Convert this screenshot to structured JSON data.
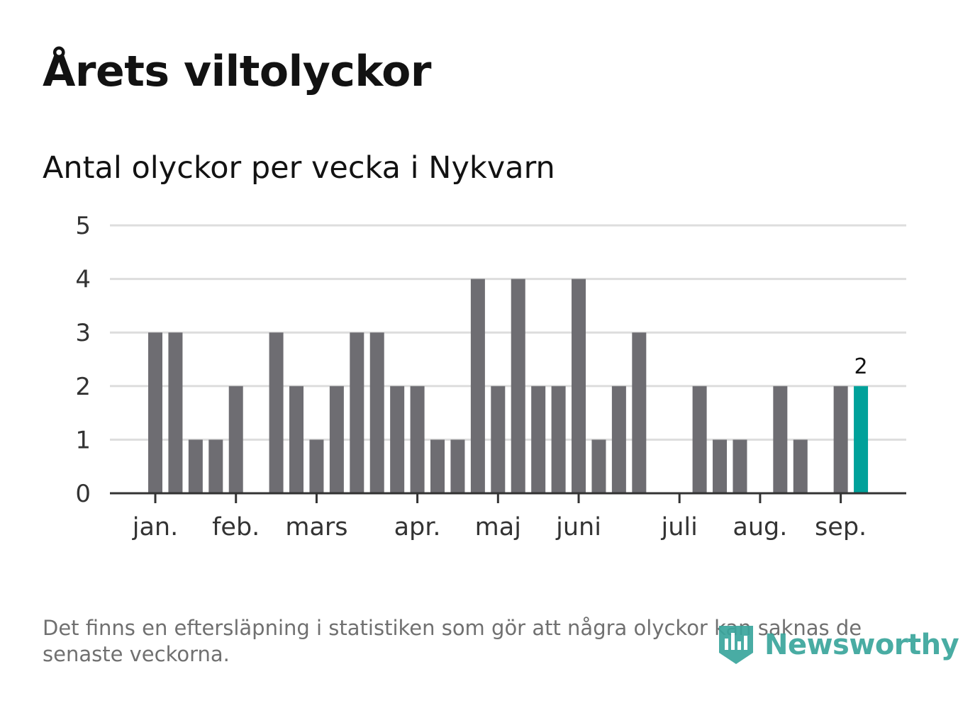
{
  "title": "Årets viltolyckor",
  "subtitle": "Antal olyckor per vecka i Nykvarn",
  "footnote": "Det finns en eftersläpning i statistiken som gör att några olyckor kan saknas de senaste veckorna.",
  "brand": {
    "name": "Newsworthy",
    "color": "#3aa59c"
  },
  "chart_data": {
    "type": "bar",
    "ylim": [
      0,
      5
    ],
    "y_ticks": [
      0,
      1,
      2,
      3,
      4,
      5
    ],
    "grid": true,
    "colors": {
      "bar": "#6e6d72",
      "highlight": "#00a19a",
      "grid": "#dddddd",
      "axis": "#333333"
    },
    "month_labels": [
      {
        "label": "jan.",
        "week": 1
      },
      {
        "label": "feb.",
        "week": 5
      },
      {
        "label": "mars",
        "week": 9
      },
      {
        "label": "apr.",
        "week": 14
      },
      {
        "label": "maj",
        "week": 18
      },
      {
        "label": "juni",
        "week": 22
      },
      {
        "label": "juli",
        "week": 27
      },
      {
        "label": "aug.",
        "week": 31
      },
      {
        "label": "sep.",
        "week": 35
      }
    ],
    "weeks": [
      1,
      2,
      3,
      4,
      5,
      6,
      7,
      8,
      9,
      10,
      11,
      12,
      13,
      14,
      15,
      16,
      17,
      18,
      19,
      20,
      21,
      22,
      23,
      24,
      25,
      26,
      27,
      28,
      29,
      30,
      31,
      32,
      33,
      34,
      35,
      36
    ],
    "values": [
      3,
      3,
      1,
      1,
      2,
      0,
      3,
      2,
      1,
      2,
      3,
      3,
      2,
      2,
      1,
      1,
      4,
      2,
      4,
      2,
      2,
      4,
      1,
      2,
      3,
      0,
      0,
      2,
      1,
      1,
      0,
      2,
      1,
      0,
      2,
      2
    ],
    "highlight_index": 35,
    "highlight_label": "2"
  }
}
